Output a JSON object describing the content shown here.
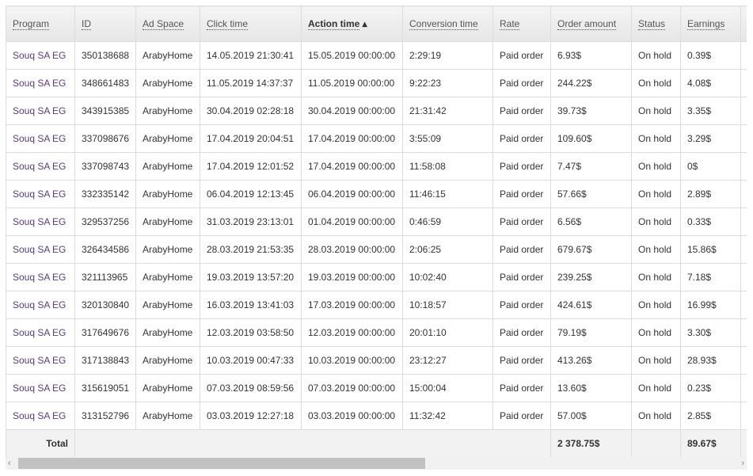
{
  "columns": [
    "Program",
    "ID",
    "Ad Space",
    "Click time",
    "Action time",
    "Conversion time",
    "Rate",
    "Order amount",
    "Status",
    "Earnings"
  ],
  "sorted_column": "Action time",
  "sort_direction": "ascending",
  "rows": [
    [
      "Souq SA EG",
      "350138688",
      "ArabyHome",
      "14.05.2019 21:30:41",
      "15.05.2019 00:00:00",
      "2:29:19",
      "Paid order",
      "6.93$",
      "On hold",
      "0.39$"
    ],
    [
      "Souq SA EG",
      "348661483",
      "ArabyHome",
      "11.05.2019 14:37:37",
      "11.05.2019 00:00:00",
      "9:22:23",
      "Paid order",
      "244.22$",
      "On hold",
      "4.08$"
    ],
    [
      "Souq SA EG",
      "343915385",
      "ArabyHome",
      "30.04.2019 02:28:18",
      "30.04.2019 00:00:00",
      "21:31:42",
      "Paid order",
      "39.73$",
      "On hold",
      "3.35$"
    ],
    [
      "Souq SA EG",
      "337098676",
      "ArabyHome",
      "17.04.2019 20:04:51",
      "17.04.2019 00:00:00",
      "3:55:09",
      "Paid order",
      "109.60$",
      "On hold",
      "3.29$"
    ],
    [
      "Souq SA EG",
      "337098743",
      "ArabyHome",
      "17.04.2019 12:01:52",
      "17.04.2019 00:00:00",
      "11:58:08",
      "Paid order",
      "7.47$",
      "On hold",
      "0$"
    ],
    [
      "Souq SA EG",
      "332335142",
      "ArabyHome",
      "06.04.2019 12:13:45",
      "06.04.2019 00:00:00",
      "11:46:15",
      "Paid order",
      "57.66$",
      "On hold",
      "2.89$"
    ],
    [
      "Souq SA EG",
      "329537256",
      "ArabyHome",
      "31.03.2019 23:13:01",
      "01.04.2019 00:00:00",
      "0:46:59",
      "Paid order",
      "6.56$",
      "On hold",
      "0.33$"
    ],
    [
      "Souq SA EG",
      "326434586",
      "ArabyHome",
      "28.03.2019 21:53:35",
      "28.03.2019 00:00:00",
      "2:06:25",
      "Paid order",
      "679.67$",
      "On hold",
      "15.86$"
    ],
    [
      "Souq SA EG",
      "321113965",
      "ArabyHome",
      "19.03.2019 13:57:20",
      "19.03.2019 00:00:00",
      "10:02:40",
      "Paid order",
      "239.25$",
      "On hold",
      "7.18$"
    ],
    [
      "Souq SA EG",
      "320130840",
      "ArabyHome",
      "16.03.2019 13:41:03",
      "17.03.2019 00:00:00",
      "10:18:57",
      "Paid order",
      "424.61$",
      "On hold",
      "16.99$"
    ],
    [
      "Souq SA EG",
      "317649676",
      "ArabyHome",
      "12.03.2019 03:58:50",
      "12.03.2019 00:00:00",
      "20:01:10",
      "Paid order",
      "79.19$",
      "On hold",
      "3.30$"
    ],
    [
      "Souq SA EG",
      "317138843",
      "ArabyHome",
      "10.03.2019 00:47:33",
      "10.03.2019 00:00:00",
      "23:12:27",
      "Paid order",
      "413.26$",
      "On hold",
      "28.93$"
    ],
    [
      "Souq SA EG",
      "315619051",
      "ArabyHome",
      "07.03.2019 08:59:56",
      "07.03.2019 00:00:00",
      "15:00:04",
      "Paid order",
      "13.60$",
      "On hold",
      "0.23$"
    ],
    [
      "Souq SA EG",
      "313152796",
      "ArabyHome",
      "03.03.2019 12:27:18",
      "03.03.2019 00:00:00",
      "11:32:42",
      "Paid order",
      "57.00$",
      "On hold",
      "2.85$"
    ]
  ],
  "total": {
    "label": "Total",
    "order_amount": "2 378.75$",
    "earnings": "89.67$"
  },
  "scrollbar": {
    "left_arrow": "‹",
    "right_arrow": "›",
    "position_percent": 0
  }
}
